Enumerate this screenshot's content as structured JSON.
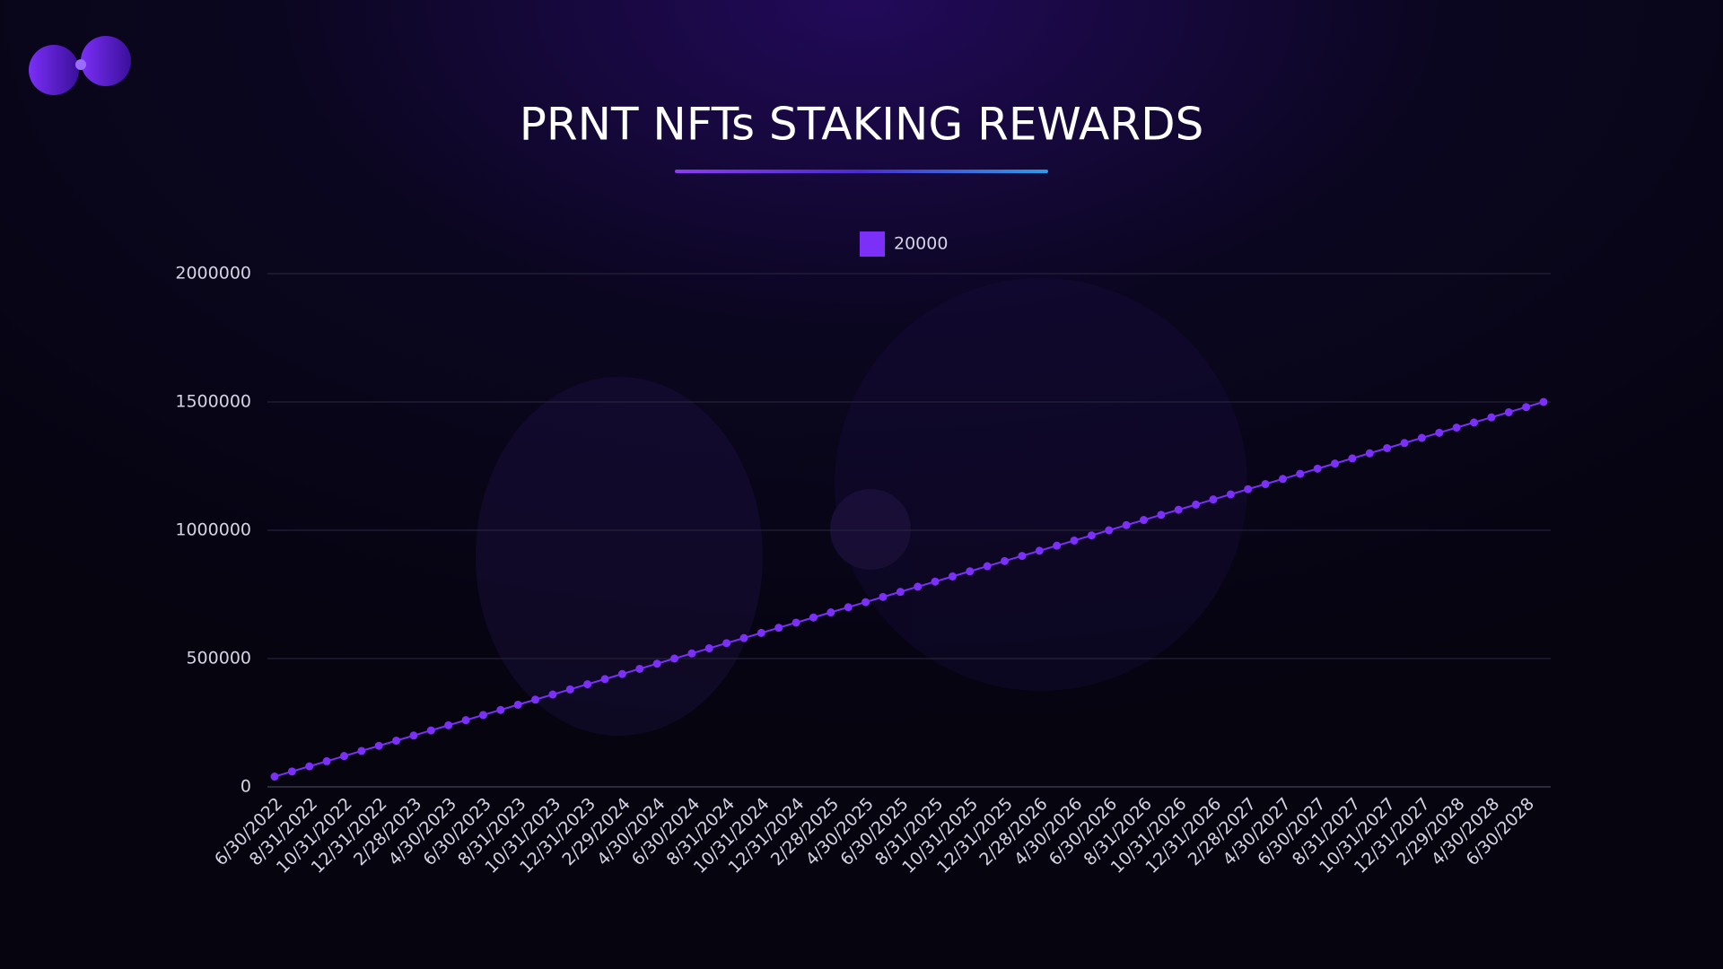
{
  "chart_data": {
    "type": "line",
    "title": "PRNT NFTs STAKING REWARDS",
    "categories": [
      "6/30/2022",
      null,
      "8/31/2022",
      null,
      "10/31/2022",
      null,
      "12/31/2022",
      null,
      "2/28/2023",
      null,
      "4/30/2023",
      null,
      "6/30/2023",
      null,
      "8/31/2023",
      null,
      "10/31/2023",
      null,
      "12/31/2023",
      null,
      "2/29/2024",
      null,
      "4/30/2024",
      null,
      "6/30/2024",
      null,
      "8/31/2024",
      null,
      "10/31/2024",
      null,
      "12/31/2024",
      null,
      "2/28/2025",
      null,
      "4/30/2025",
      null,
      "6/30/2025",
      null,
      "8/31/2025",
      null,
      "10/31/2025",
      null,
      "12/31/2025",
      null,
      "2/28/2026",
      null,
      "4/30/2026",
      null,
      "6/30/2026",
      null,
      "8/31/2026",
      null,
      "10/31/2026",
      null,
      "12/31/2026",
      null,
      "2/28/2027",
      null,
      "4/30/2027",
      null,
      "6/30/2027",
      null,
      "8/31/2027",
      null,
      "10/31/2027",
      null,
      "12/31/2027",
      null,
      "2/29/2028",
      null,
      "4/30/2028",
      null,
      "6/30/2028",
      null
    ],
    "series": [
      {
        "name": "20000",
        "color": "#7b2ff7",
        "values": [
          40000,
          60000,
          80000,
          100000,
          120000,
          140000,
          160000,
          180000,
          200000,
          220000,
          240000,
          260000,
          280000,
          300000,
          320000,
          340000,
          360000,
          380000,
          400000,
          420000,
          440000,
          460000,
          480000,
          500000,
          520000,
          540000,
          560000,
          580000,
          600000,
          620000,
          640000,
          660000,
          680000,
          700000,
          720000,
          740000,
          760000,
          780000,
          800000,
          820000,
          840000,
          860000,
          880000,
          900000,
          920000,
          940000,
          960000,
          980000,
          1000000,
          1020000,
          1040000,
          1060000,
          1080000,
          1100000,
          1120000,
          1140000,
          1160000,
          1180000,
          1200000,
          1220000,
          1240000,
          1260000,
          1280000,
          1300000,
          1320000,
          1340000,
          1360000,
          1380000,
          1400000,
          1420000,
          1440000,
          1460000,
          1480000,
          1500000
        ]
      }
    ],
    "ylim": [
      0,
      2000000
    ],
    "yticks": [
      0,
      500000,
      1000000,
      1500000,
      2000000
    ],
    "grid": true,
    "legend": "top"
  }
}
